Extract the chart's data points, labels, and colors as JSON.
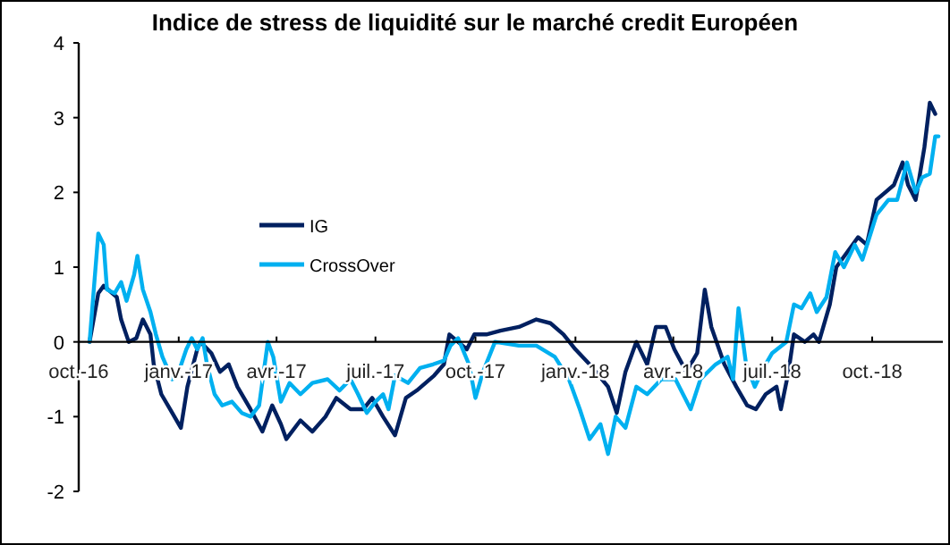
{
  "chart_data": {
    "type": "line",
    "title": "Indice de stress de liquidité sur le marché credit Européen",
    "xlim": [
      "2016-10-01",
      "2018-12-05"
    ],
    "xticks": [
      {
        "value": "2016-10-01",
        "label": "oct.-16"
      },
      {
        "value": "2017-01-01",
        "label": "janv.-17"
      },
      {
        "value": "2017-04-01",
        "label": "avr.-17"
      },
      {
        "value": "2017-07-01",
        "label": "juil.-17"
      },
      {
        "value": "2017-10-01",
        "label": "oct.-17"
      },
      {
        "value": "2018-01-01",
        "label": "janv.-18"
      },
      {
        "value": "2018-04-01",
        "label": "avr.-18"
      },
      {
        "value": "2018-07-01",
        "label": "juil.-18"
      },
      {
        "value": "2018-10-01",
        "label": "oct.-18"
      }
    ],
    "ylim": [
      -2,
      4
    ],
    "yticks": [
      -2,
      -1,
      0,
      1,
      2,
      3,
      4
    ],
    "grid": false,
    "legend": "center",
    "marker": "none",
    "line_style": "solid",
    "series": [
      {
        "name": "IG",
        "color": "#002060",
        "x": [
          "2016-10-11",
          "2016-10-19",
          "2016-10-24",
          "2016-11-05",
          "2016-11-09",
          "2016-11-16",
          "2016-11-23",
          "2016-11-29",
          "2016-12-06",
          "2016-12-09",
          "2016-12-16",
          "2016-12-24",
          "2017-01-03",
          "2017-01-09",
          "2017-01-18",
          "2017-01-21",
          "2017-01-31",
          "2017-02-08",
          "2017-02-16",
          "2017-02-24",
          "2017-03-08",
          "2017-03-19",
          "2017-03-28",
          "2017-04-05",
          "2017-04-10",
          "2017-04-23",
          "2017-05-04",
          "2017-05-16",
          "2017-05-26",
          "2017-06-08",
          "2017-06-20",
          "2017-06-28",
          "2017-07-08",
          "2017-07-19",
          "2017-07-29",
          "2017-08-08",
          "2017-08-24",
          "2017-09-02",
          "2017-09-07",
          "2017-09-15",
          "2017-09-23",
          "2017-09-30",
          "2017-10-11",
          "2017-10-24",
          "2017-11-10",
          "2017-11-26",
          "2017-12-09",
          "2017-12-21",
          "2018-01-01",
          "2018-01-14",
          "2018-01-31",
          "2018-02-08",
          "2018-02-16",
          "2018-02-26",
          "2018-03-08",
          "2018-03-16",
          "2018-03-25",
          "2018-04-02",
          "2018-04-13",
          "2018-04-23",
          "2018-04-30",
          "2018-05-06",
          "2018-05-18",
          "2018-05-29",
          "2018-06-08",
          "2018-06-16",
          "2018-06-25",
          "2018-07-05",
          "2018-07-09",
          "2018-07-16",
          "2018-07-21",
          "2018-07-31",
          "2018-08-08",
          "2018-08-13",
          "2018-08-23",
          "2018-08-29",
          "2018-09-08",
          "2018-09-18",
          "2018-09-26",
          "2018-10-05",
          "2018-10-13",
          "2018-10-21",
          "2018-10-29",
          "2018-11-03",
          "2018-11-10",
          "2018-11-18",
          "2018-11-23",
          "2018-11-28"
        ],
        "values": [
          0,
          0.65,
          0.75,
          0.6,
          0.3,
          0,
          0.05,
          0.3,
          0.1,
          -0.3,
          -0.7,
          -0.9,
          -1.15,
          -0.6,
          -0.1,
          0,
          -0.15,
          -0.4,
          -0.3,
          -0.6,
          -0.9,
          -1.2,
          -0.85,
          -1.1,
          -1.3,
          -1.05,
          -1.2,
          -1,
          -0.75,
          -0.9,
          -0.9,
          -0.75,
          -1,
          -1.25,
          -0.75,
          -0.65,
          -0.45,
          -0.3,
          0.1,
          0,
          -0.1,
          0.1,
          0.1,
          0.15,
          0.2,
          0.3,
          0.25,
          0.1,
          -0.1,
          -0.3,
          -0.6,
          -0.95,
          -0.4,
          0,
          -0.3,
          0.2,
          0.2,
          -0.1,
          -0.4,
          -0.15,
          0.7,
          0.2,
          -0.3,
          -0.6,
          -0.85,
          -0.9,
          -0.7,
          -0.6,
          -0.9,
          -0.4,
          0.1,
          0,
          0.1,
          0,
          0.5,
          1,
          1.2,
          1.4,
          1.3,
          1.9,
          2,
          2.1,
          2.4,
          2.1,
          1.9,
          2.6,
          3.2,
          3.05
        ]
      },
      {
        "name": "CrossOver",
        "color": "#00b0f0",
        "x": [
          "2016-10-11",
          "2016-10-19",
          "2016-10-24",
          "2016-10-27",
          "2016-11-03",
          "2016-11-09",
          "2016-11-14",
          "2016-11-21",
          "2016-11-24",
          "2016-11-29",
          "2016-12-06",
          "2016-12-11",
          "2016-12-17",
          "2016-12-26",
          "2017-01-01",
          "2017-01-08",
          "2017-01-13",
          "2017-01-18",
          "2017-01-23",
          "2017-01-27",
          "2017-02-03",
          "2017-02-10",
          "2017-02-19",
          "2017-02-28",
          "2017-03-08",
          "2017-03-16",
          "2017-03-24",
          "2017-03-29",
          "2017-04-05",
          "2017-04-13",
          "2017-04-23",
          "2017-05-04",
          "2017-05-18",
          "2017-05-29",
          "2017-06-08",
          "2017-06-15",
          "2017-06-23",
          "2017-07-01",
          "2017-07-08",
          "2017-07-13",
          "2017-07-19",
          "2017-07-31",
          "2017-08-11",
          "2017-08-23",
          "2017-09-02",
          "2017-09-08",
          "2017-09-15",
          "2017-09-25",
          "2017-10-01",
          "2017-10-08",
          "2017-10-19",
          "2017-11-10",
          "2017-11-26",
          "2017-12-13",
          "2017-12-26",
          "2018-01-05",
          "2018-01-14",
          "2018-01-24",
          "2018-01-31",
          "2018-02-07",
          "2018-02-16",
          "2018-02-26",
          "2018-03-08",
          "2018-03-21",
          "2018-04-03",
          "2018-04-17",
          "2018-04-26",
          "2018-05-10",
          "2018-05-21",
          "2018-05-26",
          "2018-05-31",
          "2018-06-07",
          "2018-06-15",
          "2018-06-23",
          "2018-07-01",
          "2018-07-14",
          "2018-07-21",
          "2018-07-28",
          "2018-08-05",
          "2018-08-11",
          "2018-08-20",
          "2018-08-28",
          "2018-09-05",
          "2018-09-15",
          "2018-09-22",
          "2018-10-05",
          "2018-10-16",
          "2018-10-24",
          "2018-11-02",
          "2018-11-10",
          "2018-11-16",
          "2018-11-23",
          "2018-11-28",
          "2018-12-01"
        ],
        "values": [
          0,
          1.45,
          1.3,
          0.7,
          0.65,
          0.8,
          0.55,
          0.9,
          1.15,
          0.7,
          0.4,
          0.1,
          -0.2,
          -0.5,
          -0.4,
          -0.1,
          0.05,
          -0.1,
          0.05,
          -0.3,
          -0.7,
          -0.85,
          -0.8,
          -0.95,
          -1,
          -0.85,
          0,
          -0.2,
          -0.8,
          -0.55,
          -0.7,
          -0.55,
          -0.5,
          -0.65,
          -0.5,
          -0.7,
          -0.95,
          -0.8,
          -0.7,
          -0.9,
          -0.45,
          -0.55,
          -0.35,
          -0.3,
          -0.25,
          -0.05,
          0.05,
          -0.3,
          -0.75,
          -0.4,
          0,
          -0.05,
          -0.05,
          -0.2,
          -0.5,
          -0.9,
          -1.3,
          -1.1,
          -1.5,
          -1,
          -1.15,
          -0.6,
          -0.7,
          -0.5,
          -0.5,
          -0.9,
          -0.5,
          -0.3,
          -0.2,
          -0.5,
          0.45,
          -0.3,
          -0.6,
          -0.35,
          -0.15,
          0,
          0.5,
          0.45,
          0.65,
          0.4,
          0.6,
          1.2,
          1,
          1.3,
          1.1,
          1.7,
          1.9,
          1.9,
          2.4,
          2,
          2.2,
          2.25,
          2.75,
          2.75
        ]
      }
    ]
  }
}
